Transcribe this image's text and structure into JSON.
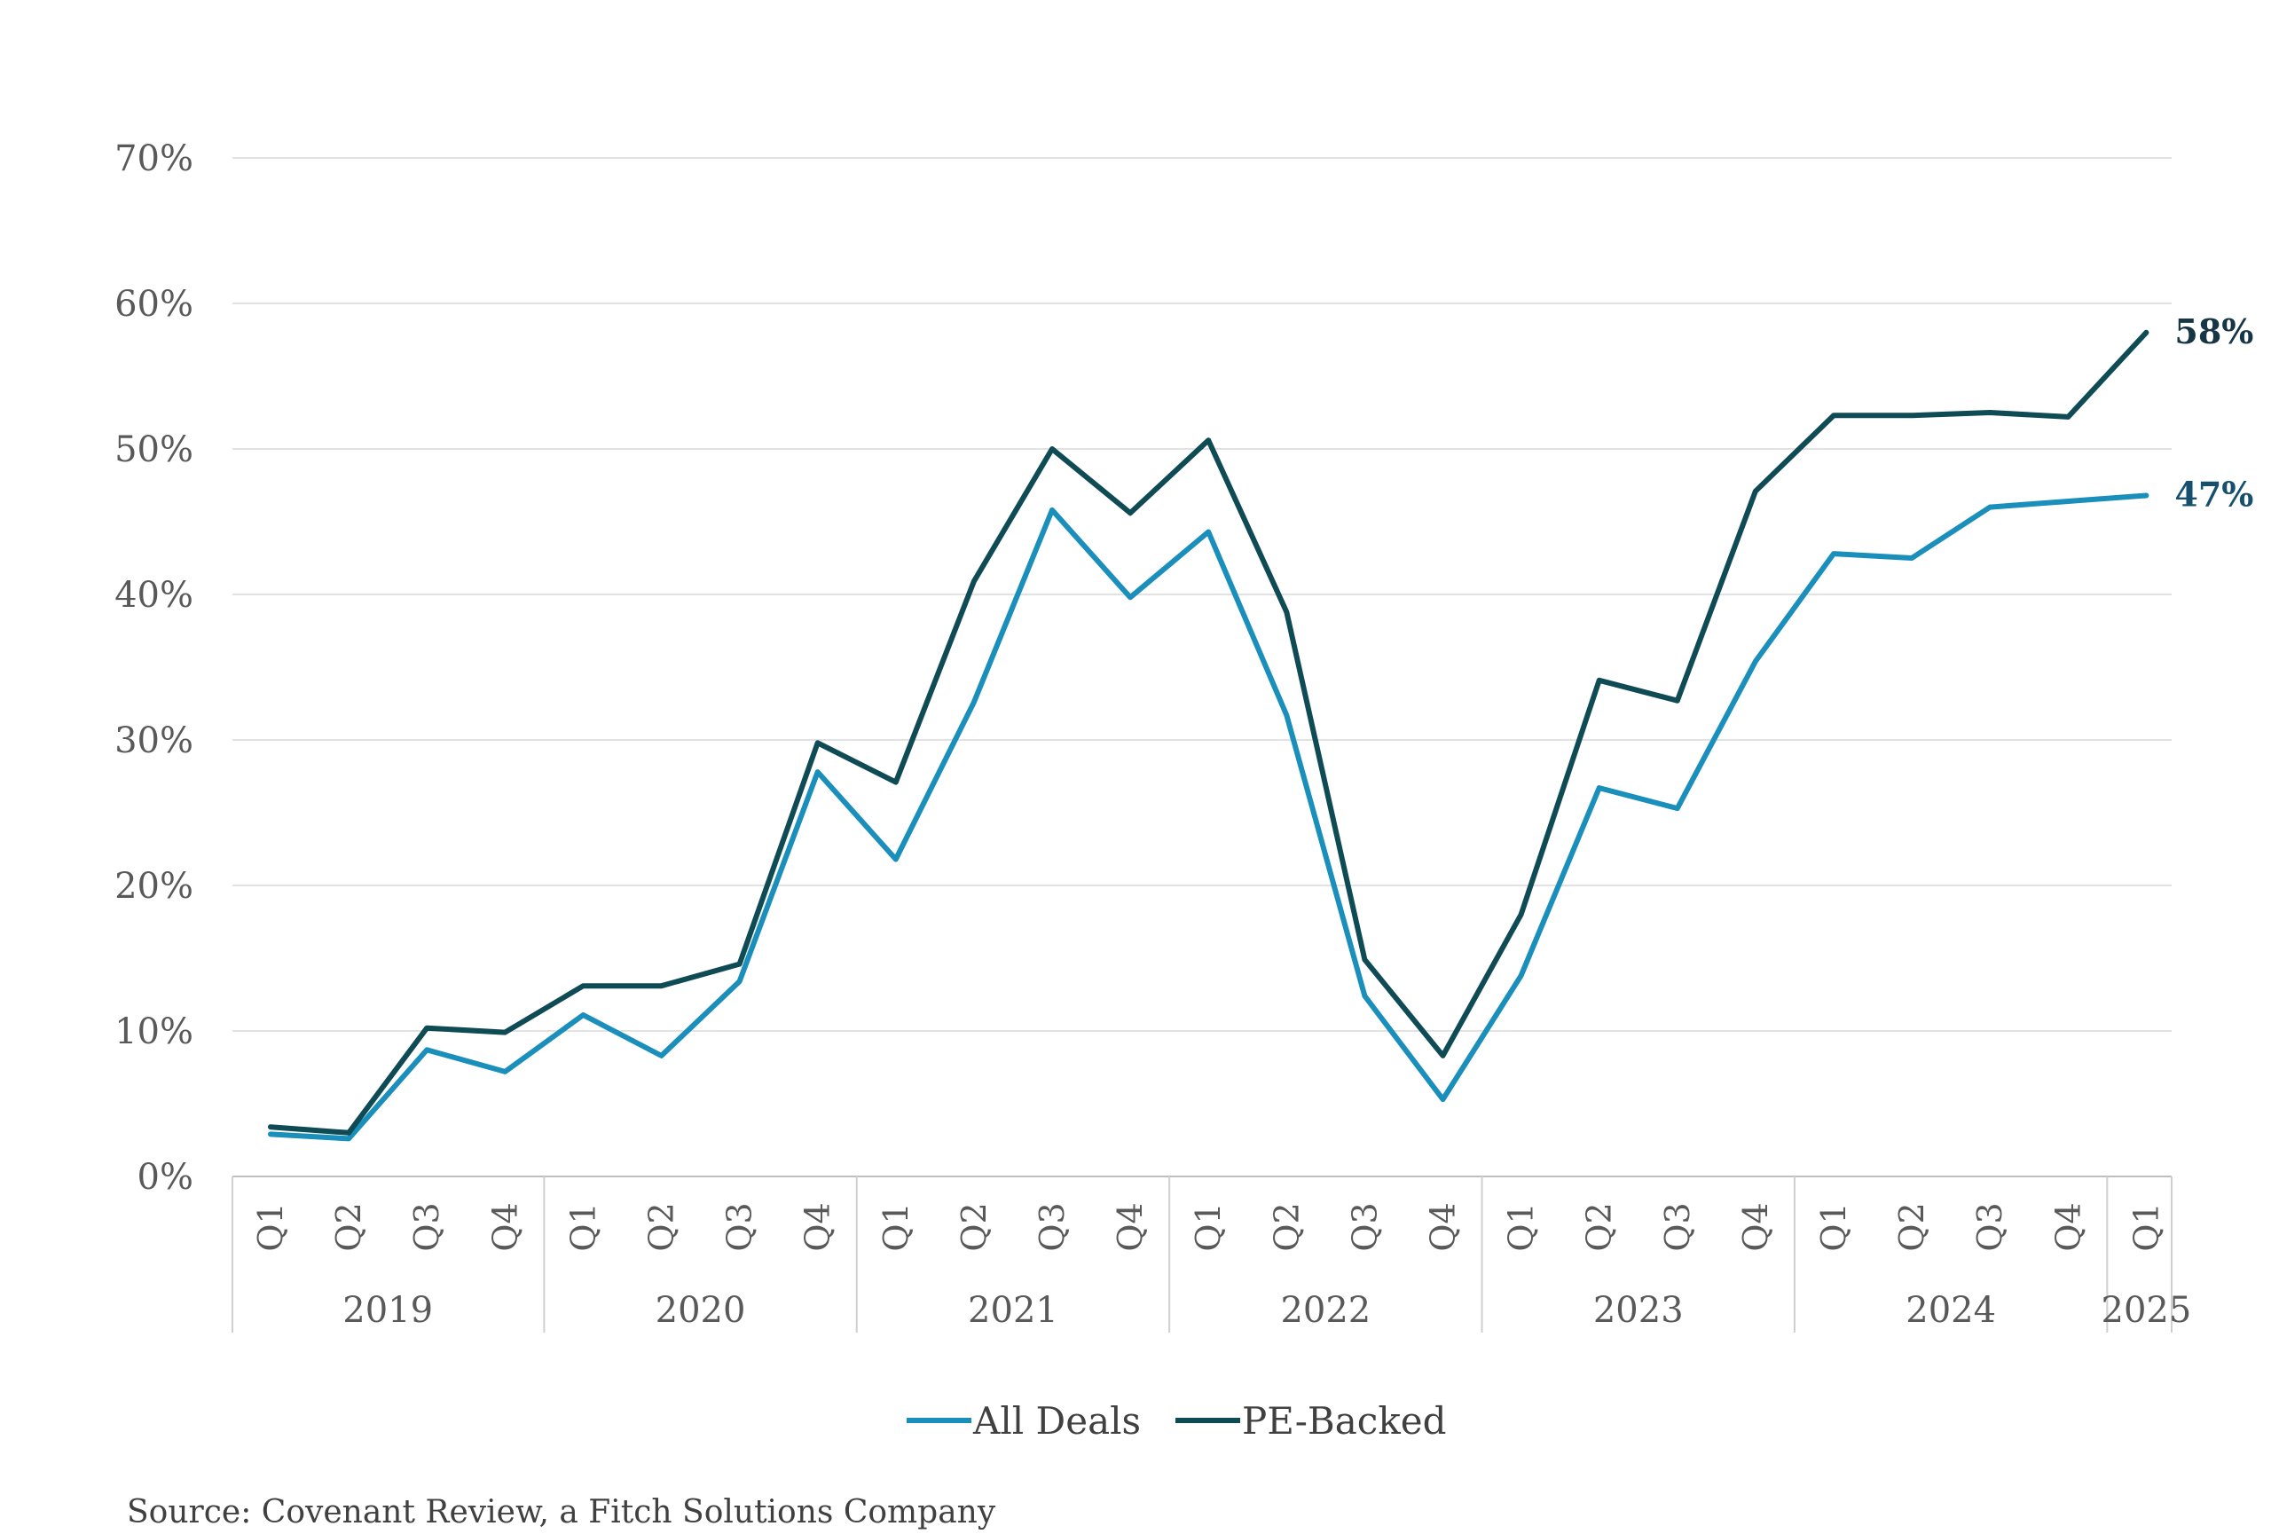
{
  "chart_data": {
    "type": "line",
    "categories": [
      "2019 Q1",
      "2019 Q2",
      "2019 Q3",
      "2019 Q4",
      "2020 Q1",
      "2020 Q2",
      "2020 Q3",
      "2020 Q4",
      "2021 Q1",
      "2021 Q2",
      "2021 Q3",
      "2021 Q4",
      "2022 Q1",
      "2022 Q2",
      "2022 Q3",
      "2022 Q4",
      "2023 Q1",
      "2023 Q2",
      "2023 Q3",
      "2023 Q4",
      "2024 Q1",
      "2024 Q2",
      "2024 Q3",
      "2024 Q4",
      "2025 Q1"
    ],
    "quarter_labels": [
      "Q1",
      "Q2",
      "Q3",
      "Q4",
      "Q1",
      "Q2",
      "Q3",
      "Q4",
      "Q1",
      "Q2",
      "Q3",
      "Q4",
      "Q1",
      "Q2",
      "Q3",
      "Q4",
      "Q1",
      "Q2",
      "Q3",
      "Q4",
      "Q1",
      "Q2",
      "Q3",
      "Q4",
      "Q1"
    ],
    "year_groups": [
      {
        "label": "2019",
        "count": 4
      },
      {
        "label": "2020",
        "count": 4
      },
      {
        "label": "2021",
        "count": 4
      },
      {
        "label": "2022",
        "count": 4
      },
      {
        "label": "2023",
        "count": 4
      },
      {
        "label": "2024",
        "count": 4
      },
      {
        "label": "2025",
        "count": 1
      }
    ],
    "series": [
      {
        "name": "All Deals",
        "color": "#1a8fbb",
        "values": [
          2.9,
          2.6,
          8.7,
          7.2,
          11.1,
          8.3,
          13.4,
          27.8,
          21.8,
          32.6,
          45.8,
          39.8,
          44.3,
          31.7,
          12.4,
          5.3,
          13.8,
          26.7,
          25.3,
          35.4,
          42.8,
          42.5,
          46.0,
          46.4,
          46.8
        ],
        "end_label": "47%",
        "end_label_color": "#17506e"
      },
      {
        "name": "PE-Backed",
        "color": "#0f4b55",
        "values": [
          3.4,
          3.0,
          10.2,
          9.9,
          13.1,
          13.1,
          14.6,
          29.8,
          27.1,
          40.9,
          50.0,
          45.6,
          50.6,
          38.8,
          14.9,
          8.3,
          18.0,
          34.1,
          32.7,
          47.1,
          52.3,
          52.3,
          52.5,
          52.2,
          58.0
        ],
        "end_label": "58%",
        "end_label_color": "#163545"
      }
    ],
    "y_ticks": [
      "0%",
      "10%",
      "20%",
      "30%",
      "40%",
      "50%",
      "60%",
      "70%"
    ],
    "ylim": [
      0,
      70
    ],
    "grid": true,
    "legend_position": "bottom",
    "title": "",
    "xlabel": "",
    "ylabel": ""
  },
  "source": "Source: Covenant Review, a Fitch Solutions Company"
}
